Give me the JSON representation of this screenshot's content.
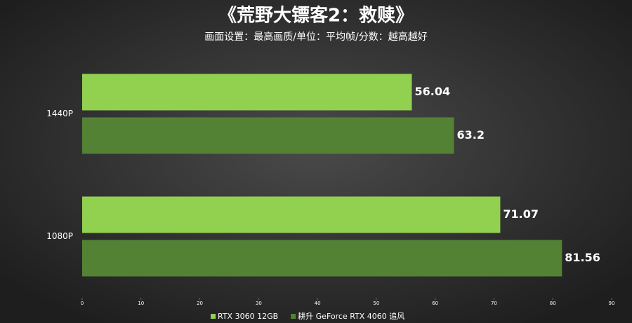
{
  "chart_data": {
    "type": "bar",
    "orientation": "horizontal",
    "title": "《荒野大镖客2：救赎》",
    "subtitle": "画面设置：最高画质/单位：平均帧/分数：越高越好",
    "categories": [
      "1440P",
      "1080P"
    ],
    "series": [
      {
        "name": "RTX 3060 12GB",
        "color": "#92d050",
        "values": [
          56.04,
          71.07
        ]
      },
      {
        "name": "耕升 GeForce RTX 4060 追风",
        "color": "#548235",
        "values": [
          63.2,
          81.56
        ]
      }
    ],
    "xlim": [
      0,
      90
    ],
    "xticks": [
      0,
      10,
      20,
      30,
      40,
      50,
      60,
      70,
      80,
      90
    ],
    "legend": "bottom"
  }
}
